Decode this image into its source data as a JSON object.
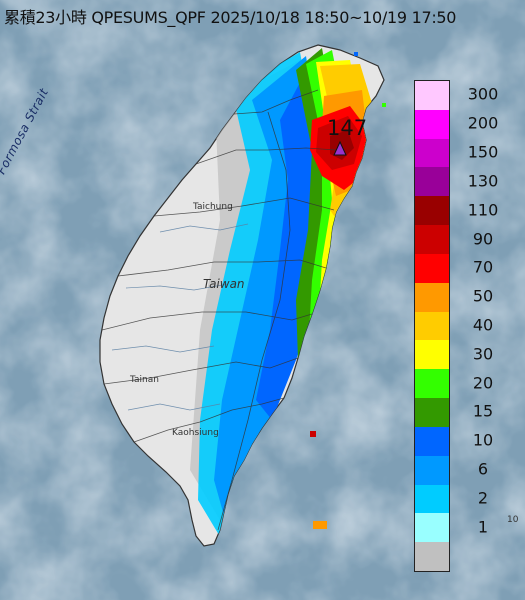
{
  "title": "累積23小時 QPESUMS_QPF 2025/10/18 18:50~10/19 17:50",
  "map_labels": {
    "strait": "Formosa Strait",
    "island": "Taiwan",
    "city_taichung": "Taichung",
    "city_tainan": "Tainan",
    "city_kaohsiung": "Kaohsiung",
    "corner": "10"
  },
  "max_marker": {
    "value": "147",
    "icon": "triangle-marker-icon",
    "color": "#9932cc"
  },
  "legend": {
    "unit_hint": "",
    "levels": [
      {
        "label": "300",
        "color": "#ffc8ff"
      },
      {
        "label": "200",
        "color": "#ff00ff"
      },
      {
        "label": "150",
        "color": "#cc00cc"
      },
      {
        "label": "130",
        "color": "#990099"
      },
      {
        "label": "110",
        "color": "#990000"
      },
      {
        "label": "90",
        "color": "#cc0000"
      },
      {
        "label": "70",
        "color": "#ff0000"
      },
      {
        "label": "50",
        "color": "#ff9900"
      },
      {
        "label": "40",
        "color": "#ffcc00"
      },
      {
        "label": "30",
        "color": "#ffff00"
      },
      {
        "label": "20",
        "color": "#33ff00"
      },
      {
        "label": "15",
        "color": "#339900"
      },
      {
        "label": "10",
        "color": "#0066ff"
      },
      {
        "label": "6",
        "color": "#0099ff"
      },
      {
        "label": "2",
        "color": "#00ccff"
      },
      {
        "label": "1",
        "color": "#99ffff"
      },
      {
        "label": "",
        "color": "#c0c0c0"
      }
    ]
  },
  "colors": {
    "sea": "#7f9fb5",
    "land": "#e6e6e6",
    "no_rain": "#c0c0c0"
  }
}
